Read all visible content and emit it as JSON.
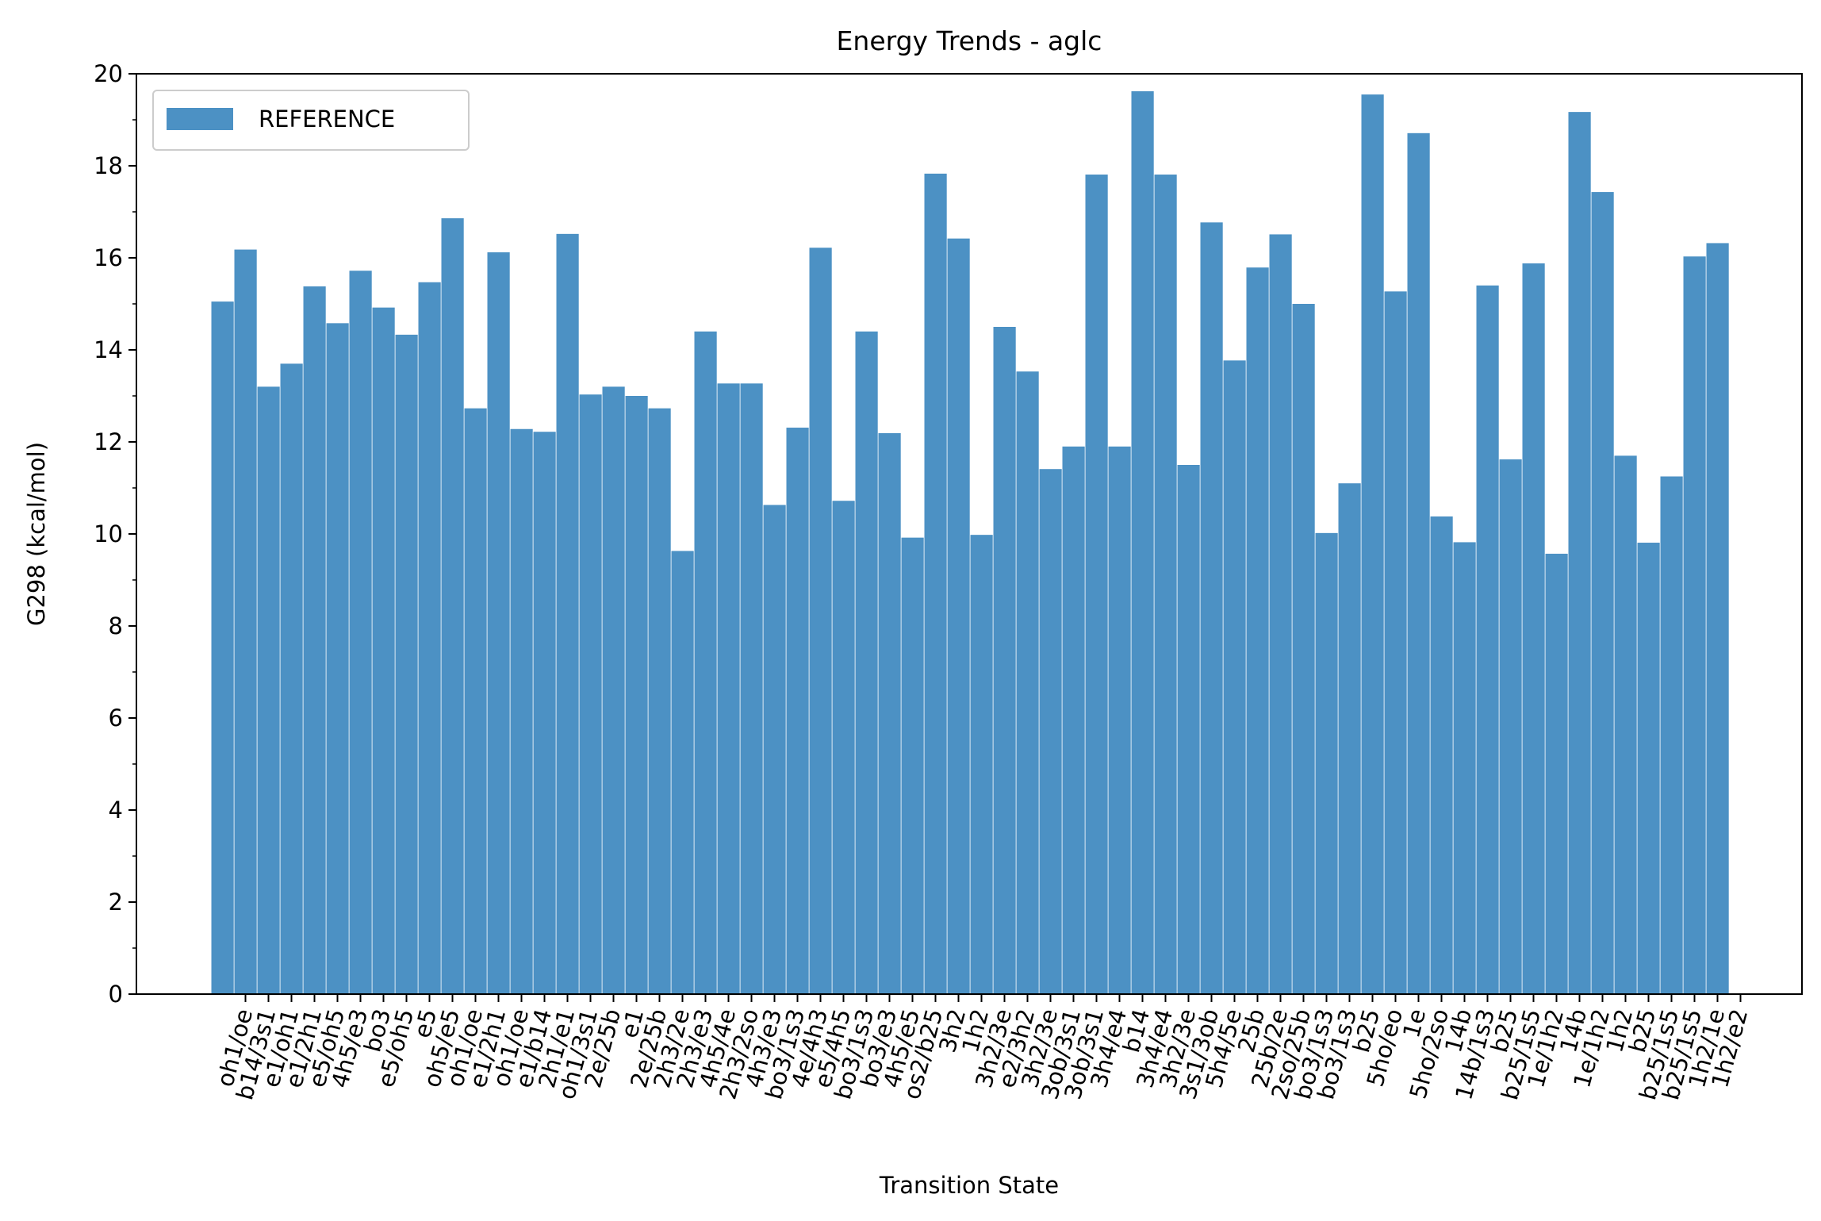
{
  "chart_data": {
    "type": "bar",
    "title": "Energy Trends - aglc",
    "xlabel": "Transition State",
    "ylabel": "G298 (kcal/mol)",
    "ylim": [
      0,
      20
    ],
    "yticks": [
      "0",
      "2",
      "4",
      "6",
      "8",
      "10",
      "12",
      "14",
      "16",
      "18",
      "20"
    ],
    "grid": false,
    "legend_position": "top-left",
    "bar_color": "#4c91c4",
    "categories": [
      "oh1/oe",
      "b14/3s1",
      "e1/oh1",
      "e1/2h1",
      "e5/oh5",
      "4h5/e3",
      "bo3",
      "e5/oh5",
      "e5",
      "oh5/e5",
      "oh1/oe",
      "e1/2h1",
      "oh1/oe",
      "e1/b14",
      "2h1/e1",
      "oh1/3s1",
      "2e/25b",
      "e1",
      "2e/25b",
      "2h3/2e",
      "2h3/e3",
      "4h5/4e",
      "2h3/2so",
      "4h3/e3",
      "bo3/1s3",
      "4e/4h3",
      "e5/4h5",
      "bo3/1s3",
      "bo3/e3",
      "4h5/e5",
      "os2/b25",
      "3h2",
      "1h2",
      "3h2/3e",
      "e2/3h2",
      "3h2/3e",
      "3ob/3s1",
      "3ob/3s1",
      "3h4/e4",
      "b14",
      "3h4/e4",
      "3h2/3e",
      "3s1/3ob",
      "5h4/5e",
      "25b",
      "25b/2e",
      "2so/25b",
      "bo3/1s3",
      "bo3/1s3",
      "b25",
      "5ho/eo",
      "1e",
      "5ho/2so",
      "14b",
      "14b/1s3",
      "b25",
      "b25/1s5",
      "1e/1h2",
      "14b",
      "1e/1h2",
      "1h2",
      "b25",
      "b25/1s5",
      "b25/1s5",
      "1h2/1e",
      "1h2/e2"
    ],
    "series": [
      {
        "name": "REFERENCE",
        "values": [
          15.05,
          16.18,
          13.2,
          13.7,
          15.38,
          14.58,
          15.72,
          14.92,
          14.33,
          15.47,
          16.86,
          12.73,
          16.12,
          12.28,
          12.22,
          16.52,
          13.03,
          13.2,
          13.0,
          12.73,
          9.63,
          14.4,
          13.27,
          13.27,
          10.63,
          12.31,
          16.22,
          10.72,
          14.4,
          12.19,
          9.92,
          17.83,
          16.42,
          9.98,
          14.5,
          13.53,
          11.41,
          11.9,
          17.81,
          11.9,
          19.62,
          17.81,
          11.5,
          16.77,
          13.77,
          15.79,
          16.51,
          15.0,
          10.02,
          11.1,
          19.55,
          15.27,
          18.71,
          10.38,
          9.82,
          15.4,
          11.62,
          15.88,
          9.57,
          19.17,
          17.43,
          11.7,
          9.81,
          11.25,
          16.03,
          16.32
        ]
      }
    ]
  }
}
